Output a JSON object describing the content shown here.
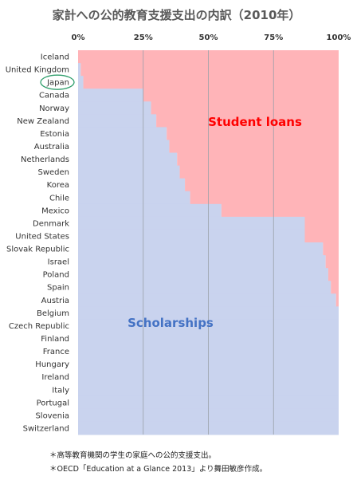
{
  "chart_data": {
    "type": "bar",
    "orientation": "horizontal",
    "stacked": "100%",
    "title": "家計への公的教育支援支出の内訳（2010年）",
    "x_ticks": [
      "0%",
      "25%",
      "50%",
      "75%",
      "100%"
    ],
    "xlim": [
      0,
      100
    ],
    "categories": [
      "Iceland",
      "United Kingdom",
      "Japan",
      "Canada",
      "Norway",
      "New Zealand",
      "Estonia",
      "Australia",
      "Netherlands",
      "Sweden",
      "Korea",
      "Chile",
      "Mexico",
      "Denmark",
      "United States",
      "Slovak Republic",
      "Israel",
      "Poland",
      "Spain",
      "Austria",
      "Belgium",
      "Czech Republic",
      "Finland",
      "France",
      "Hungary",
      "Ireland",
      "Italy",
      "Portugal",
      "Slovenia",
      "Switzerland"
    ],
    "series": [
      {
        "name": "Scholarships",
        "color": "#c9d3ee",
        "values": [
          0,
          1,
          2,
          25,
          28,
          30,
          34,
          35,
          38,
          39,
          41,
          43,
          55,
          87,
          87,
          94,
          95,
          96,
          97,
          99,
          100,
          100,
          100,
          100,
          100,
          100,
          100,
          100,
          100,
          100
        ]
      },
      {
        "name": "Student loans",
        "color": "#ffb4b8",
        "values": [
          100,
          99,
          98,
          75,
          72,
          70,
          66,
          65,
          62,
          61,
          59,
          57,
          45,
          13,
          13,
          6,
          5,
          4,
          3,
          1,
          0,
          0,
          0,
          0,
          0,
          0,
          0,
          0,
          0,
          0
        ]
      }
    ],
    "series_label_colors": {
      "Scholarships": "#4472c4",
      "Student loans": "#ff0000"
    },
    "highlight_category": "Japan",
    "grid": "vertical"
  },
  "notes": [
    "＊高等教育機関の学生の家庭への公的支援支出。",
    "＊OECD「Education at a Glance 2013」より舞田敏彦作成。"
  ]
}
